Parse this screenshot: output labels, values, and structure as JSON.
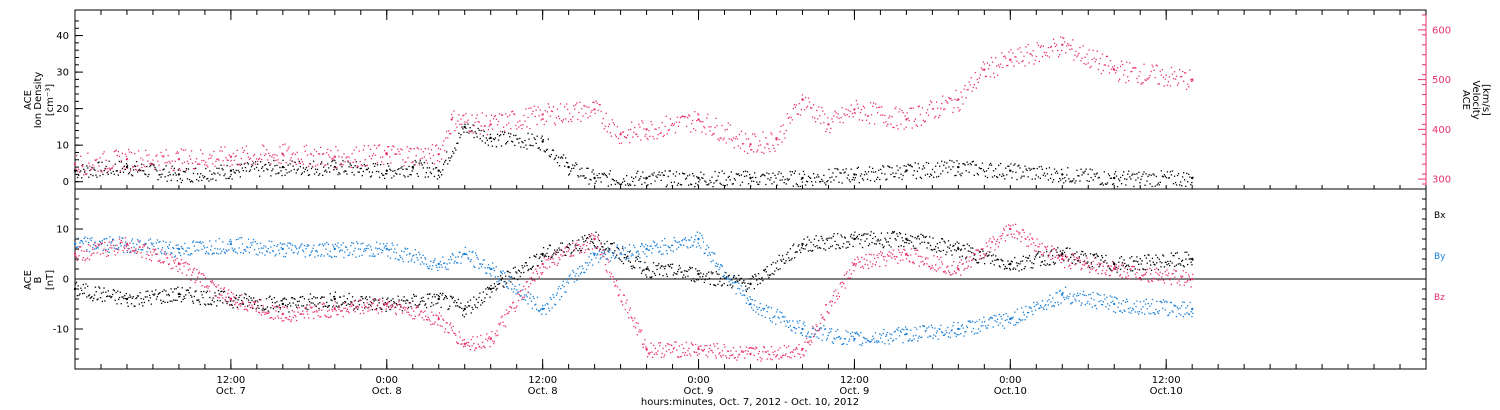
{
  "colors": {
    "black": "#000000",
    "blue": "#1a7fd6",
    "pink": "#e8336a",
    "axis": "#000000"
  },
  "top_panel": {
    "left_label": {
      "line1": "ACE",
      "line2": "Ion Density",
      "line3": "[cm⁻³]"
    },
    "right_label": {
      "line1": "ACE",
      "line2": "Velocity",
      "line3": "[km/s]"
    }
  },
  "bottom_panel": {
    "left_label": {
      "line1": "ACE",
      "line2": "B",
      "line3": "[nT]"
    },
    "legend": [
      "Bx",
      "By",
      "Bz"
    ]
  },
  "xaxis": {
    "title": "hours:minutes, Oct.  7, 2012 - Oct. 10, 2012",
    "ticks": [
      {
        "hour": 12,
        "line1": "12:00",
        "line2": "Oct. 7"
      },
      {
        "hour": 24,
        "line1": "0:00",
        "line2": "Oct. 8"
      },
      {
        "hour": 36,
        "line1": "12:00",
        "line2": "Oct. 8"
      },
      {
        "hour": 48,
        "line1": "0:00",
        "line2": "Oct. 9"
      },
      {
        "hour": 60,
        "line1": "12:00",
        "line2": "Oct. 9"
      },
      {
        "hour": 72,
        "line1": "0:00",
        "line2": "Oct.10"
      },
      {
        "hour": 84,
        "line1": "12:00",
        "line2": "Oct.10"
      }
    ]
  },
  "chart_data": [
    {
      "type": "scatter",
      "panel": "top",
      "xlim": [
        0,
        104
      ],
      "ylim_left": [
        -2,
        47
      ],
      "ylim_right": [
        280,
        640
      ],
      "left_ticks": [
        0,
        10,
        20,
        30,
        40
      ],
      "right_ticks": [
        300,
        400,
        500,
        600
      ],
      "series": [
        {
          "color": "black",
          "axis": "left",
          "x": [
            0,
            4,
            8,
            12,
            16,
            20,
            24,
            26,
            28,
            30,
            32,
            36,
            38,
            40,
            44,
            48,
            52,
            56,
            60,
            64,
            68,
            72,
            76,
            80,
            86
          ],
          "y": [
            3,
            4,
            2,
            3,
            4,
            4,
            3,
            4,
            3,
            15,
            12,
            11,
            4,
            1,
            1,
            1,
            1,
            1,
            2,
            3,
            4,
            3,
            2,
            1,
            1
          ]
        },
        {
          "color": "pink",
          "axis": "right",
          "x": [
            0,
            4,
            8,
            12,
            16,
            20,
            24,
            28,
            29,
            32,
            36,
            40,
            42,
            44,
            48,
            52,
            54,
            56,
            58,
            60,
            64,
            68,
            70,
            72,
            76,
            80,
            86
          ],
          "y": [
            330,
            340,
            340,
            345,
            350,
            345,
            350,
            350,
            420,
            410,
            430,
            440,
            390,
            400,
            420,
            370,
            380,
            460,
            410,
            440,
            420,
            460,
            520,
            540,
            570,
            520,
            500
          ]
        }
      ]
    },
    {
      "type": "scatter",
      "panel": "bottom",
      "xlim": [
        0,
        104
      ],
      "ylim": [
        -18,
        18
      ],
      "ticks": [
        -10,
        0,
        10
      ],
      "zero_line": true,
      "series": [
        {
          "color": "black",
          "x": [
            0,
            4,
            8,
            12,
            16,
            20,
            24,
            28,
            30,
            32,
            36,
            40,
            44,
            48,
            52,
            56,
            60,
            64,
            68,
            72,
            76,
            80,
            86
          ],
          "y": [
            -2,
            -4,
            -3,
            -4,
            -5,
            -4,
            -5,
            -4,
            -6,
            -2,
            5,
            8,
            2,
            1,
            -1,
            7,
            8,
            8,
            6,
            3,
            5,
            3,
            4
          ]
        },
        {
          "color": "blue",
          "x": [
            0,
            4,
            8,
            12,
            16,
            20,
            24,
            28,
            30,
            32,
            36,
            40,
            44,
            48,
            52,
            56,
            60,
            64,
            68,
            72,
            76,
            80,
            86
          ],
          "y": [
            7,
            7,
            6,
            7,
            6,
            6,
            6,
            3,
            5,
            2,
            -6,
            5,
            6,
            8,
            -5,
            -10,
            -12,
            -11,
            -10,
            -8,
            -3,
            -5,
            -6
          ]
        },
        {
          "color": "pink",
          "x": [
            0,
            4,
            8,
            12,
            16,
            20,
            24,
            28,
            30,
            32,
            36,
            40,
            44,
            48,
            52,
            56,
            60,
            64,
            68,
            72,
            76,
            80,
            86
          ],
          "y": [
            5,
            7,
            3,
            -4,
            -7,
            -6,
            -5,
            -8,
            -13,
            -12,
            3,
            8,
            -14,
            -14,
            -15,
            -14,
            3,
            5,
            2,
            10,
            4,
            2,
            0
          ]
        }
      ]
    }
  ]
}
